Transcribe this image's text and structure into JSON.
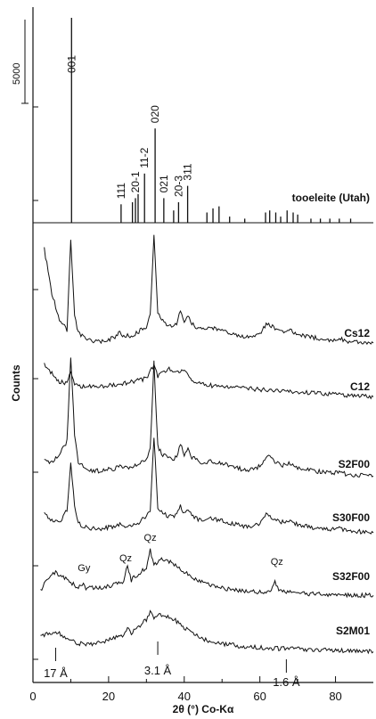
{
  "chart_data": {
    "type": "line",
    "xlabel": "2θ (°) Co-Kα",
    "ylabel": "Counts",
    "xlim": [
      0,
      90
    ],
    "x_ticks": [
      0,
      20,
      40,
      60,
      80
    ],
    "scale_bar_label": "5000",
    "reference": {
      "name": "tooeleite (Utah)",
      "peaks": [
        {
          "x": 10.2,
          "h": 1.0,
          "label": "001"
        },
        {
          "x": 26.3,
          "h": 0.1,
          "label": ""
        },
        {
          "x": 27.8,
          "h": 0.14,
          "label": ""
        },
        {
          "x": 23.3,
          "h": 0.09,
          "label": "111"
        },
        {
          "x": 27.1,
          "h": 0.12,
          "label": "20-1"
        },
        {
          "x": 29.5,
          "h": 0.24,
          "label": "11-2"
        },
        {
          "x": 32.3,
          "h": 0.46,
          "label": "020"
        },
        {
          "x": 34.6,
          "h": 0.12,
          "label": "021"
        },
        {
          "x": 38.5,
          "h": 0.1,
          "label": "20-3"
        },
        {
          "x": 40.9,
          "h": 0.18,
          "label": "311"
        },
        {
          "x": 37.2,
          "h": 0.06,
          "label": ""
        },
        {
          "x": 46.0,
          "h": 0.05,
          "label": ""
        },
        {
          "x": 47.6,
          "h": 0.07,
          "label": ""
        },
        {
          "x": 49.2,
          "h": 0.08,
          "label": ""
        },
        {
          "x": 52.0,
          "h": 0.03,
          "label": ""
        },
        {
          "x": 56.0,
          "h": 0.02,
          "label": ""
        },
        {
          "x": 61.5,
          "h": 0.05,
          "label": ""
        },
        {
          "x": 62.6,
          "h": 0.06,
          "label": ""
        },
        {
          "x": 64.2,
          "h": 0.05,
          "label": ""
        },
        {
          "x": 65.5,
          "h": 0.03,
          "label": ""
        },
        {
          "x": 67.2,
          "h": 0.06,
          "label": ""
        },
        {
          "x": 68.8,
          "h": 0.05,
          "label": ""
        },
        {
          "x": 70.0,
          "h": 0.04,
          "label": ""
        },
        {
          "x": 73.5,
          "h": 0.02,
          "label": ""
        },
        {
          "x": 76.0,
          "h": 0.02,
          "label": ""
        },
        {
          "x": 78.5,
          "h": 0.02,
          "label": ""
        },
        {
          "x": 81.0,
          "h": 0.02,
          "label": ""
        },
        {
          "x": 84.0,
          "h": 0.02,
          "label": ""
        }
      ]
    },
    "series": [
      {
        "name": "Cs12",
        "x": [
          3,
          5,
          7,
          9,
          10,
          11,
          12,
          14,
          16,
          18,
          20,
          22,
          23,
          24,
          26,
          28,
          30,
          31,
          32,
          33,
          34,
          36,
          38,
          39,
          40,
          41,
          42,
          44,
          46,
          47,
          48,
          50,
          52,
          54,
          56,
          58,
          60,
          62,
          63,
          64,
          66,
          68,
          70,
          72,
          74,
          76,
          78,
          80,
          81,
          82,
          84,
          86,
          88,
          90
        ],
        "y": [
          160,
          95,
          55,
          40,
          175,
          60,
          35,
          25,
          22,
          22,
          25,
          30,
          36,
          31,
          30,
          37,
          45,
          60,
          185,
          65,
          55,
          45,
          48,
          70,
          52,
          62,
          48,
          42,
          40,
          44,
          42,
          40,
          36,
          32,
          30,
          30,
          34,
          50,
          46,
          40,
          36,
          40,
          32,
          30,
          28,
          27,
          25,
          25,
          28,
          24,
          22,
          22,
          21,
          20
        ]
      },
      {
        "name": "C12",
        "x": [
          3,
          5,
          7,
          9,
          10,
          11,
          12,
          14,
          16,
          18,
          20,
          22,
          24,
          26,
          28,
          30,
          32,
          33,
          34,
          36,
          38,
          40,
          42,
          44,
          46,
          48,
          50,
          55,
          60,
          65,
          70,
          75,
          80,
          85,
          90
        ],
        "y": [
          70,
          55,
          42,
          40,
          60,
          40,
          36,
          34,
          34,
          35,
          36,
          38,
          40,
          42,
          44,
          48,
          70,
          50,
          56,
          62,
          60,
          58,
          46,
          40,
          38,
          35,
          34,
          32,
          30,
          28,
          26,
          24,
          22,
          20,
          18
        ]
      },
      {
        "name": "S2F00",
        "x": [
          3,
          5,
          7,
          9,
          10,
          11,
          12,
          14,
          16,
          18,
          20,
          22,
          23,
          24,
          26,
          28,
          30,
          31,
          32,
          33,
          34,
          36,
          38,
          39,
          40,
          41,
          42,
          44,
          46,
          47,
          48,
          50,
          52,
          54,
          56,
          58,
          60,
          62,
          63,
          64,
          66,
          68,
          70,
          72,
          74,
          76,
          78,
          80,
          81,
          82,
          84,
          86,
          88,
          90
        ],
        "y": [
          40,
          40,
          50,
          70,
          195,
          80,
          40,
          30,
          26,
          26,
          28,
          30,
          36,
          30,
          30,
          36,
          45,
          58,
          190,
          62,
          52,
          44,
          46,
          68,
          50,
          60,
          46,
          40,
          38,
          42,
          40,
          38,
          34,
          30,
          28,
          28,
          33,
          50,
          44,
          38,
          34,
          38,
          30,
          28,
          26,
          25,
          23,
          23,
          26,
          22,
          20,
          20,
          19,
          18
        ]
      },
      {
        "name": "S30F00",
        "x": [
          3,
          5,
          7,
          9,
          10,
          11,
          12,
          14,
          16,
          18,
          20,
          22,
          23,
          24,
          26,
          28,
          30,
          31,
          32,
          33,
          34,
          36,
          38,
          39,
          40,
          41,
          42,
          44,
          46,
          47,
          48,
          50,
          52,
          54,
          56,
          58,
          60,
          62,
          63,
          64,
          66,
          68,
          70,
          72,
          74,
          76,
          78,
          80,
          81,
          82,
          84,
          86,
          88,
          90
        ],
        "y": [
          45,
          35,
          30,
          50,
          120,
          55,
          30,
          24,
          22,
          22,
          24,
          26,
          30,
          27,
          27,
          32,
          40,
          50,
          160,
          55,
          46,
          40,
          42,
          58,
          44,
          52,
          40,
          36,
          34,
          38,
          36,
          34,
          30,
          28,
          26,
          26,
          30,
          45,
          40,
          35,
          32,
          35,
          28,
          26,
          24,
          23,
          21,
          21,
          24,
          20,
          18,
          18,
          17,
          16
        ]
      },
      {
        "name": "S32F00",
        "x": [
          2,
          4,
          5,
          6,
          7,
          8,
          10,
          12,
          13,
          14,
          16,
          18,
          20,
          22,
          24,
          25,
          26,
          28,
          30,
          31,
          32,
          34,
          36,
          38,
          40,
          42,
          44,
          46,
          48,
          50,
          55,
          60,
          63,
          64,
          65,
          66,
          70,
          75,
          80,
          85,
          90
        ],
        "y": [
          12,
          30,
          38,
          40,
          36,
          32,
          24,
          16,
          22,
          16,
          16,
          17,
          19,
          22,
          26,
          50,
          28,
          38,
          46,
          72,
          52,
          58,
          56,
          50,
          40,
          32,
          26,
          22,
          18,
          16,
          12,
          10,
          12,
          26,
          12,
          10,
          8,
          7,
          6,
          5,
          5
        ]
      },
      {
        "name": "S2M01",
        "x": [
          2,
          4,
          5,
          6,
          7,
          8,
          10,
          12,
          14,
          16,
          18,
          20,
          22,
          24,
          25,
          26,
          28,
          30,
          31,
          32,
          34,
          36,
          38,
          40,
          42,
          44,
          46,
          48,
          50,
          55,
          60,
          65,
          70,
          75,
          80,
          85,
          90
        ],
        "y": [
          28,
          35,
          36,
          38,
          34,
          30,
          22,
          18,
          17,
          18,
          20,
          24,
          28,
          32,
          42,
          36,
          46,
          56,
          70,
          60,
          64,
          62,
          54,
          44,
          36,
          28,
          24,
          20,
          18,
          14,
          12,
          10,
          9,
          8,
          7,
          6,
          5
        ]
      }
    ],
    "annotations": [
      {
        "series": "S32F00",
        "x": 13.5,
        "text": "Gy"
      },
      {
        "series": "S32F00",
        "x": 24.5,
        "text": "Qz"
      },
      {
        "series": "S32F00",
        "x": 31.0,
        "text": "Qz"
      },
      {
        "series": "S32F00",
        "x": 64.5,
        "text": "Qz"
      }
    ],
    "markers": [
      {
        "x": 6.0,
        "text": "17 Å"
      },
      {
        "x": 33.0,
        "text": "3.1 Å"
      },
      {
        "x": 67.0,
        "text": "1.6 Å"
      }
    ]
  }
}
